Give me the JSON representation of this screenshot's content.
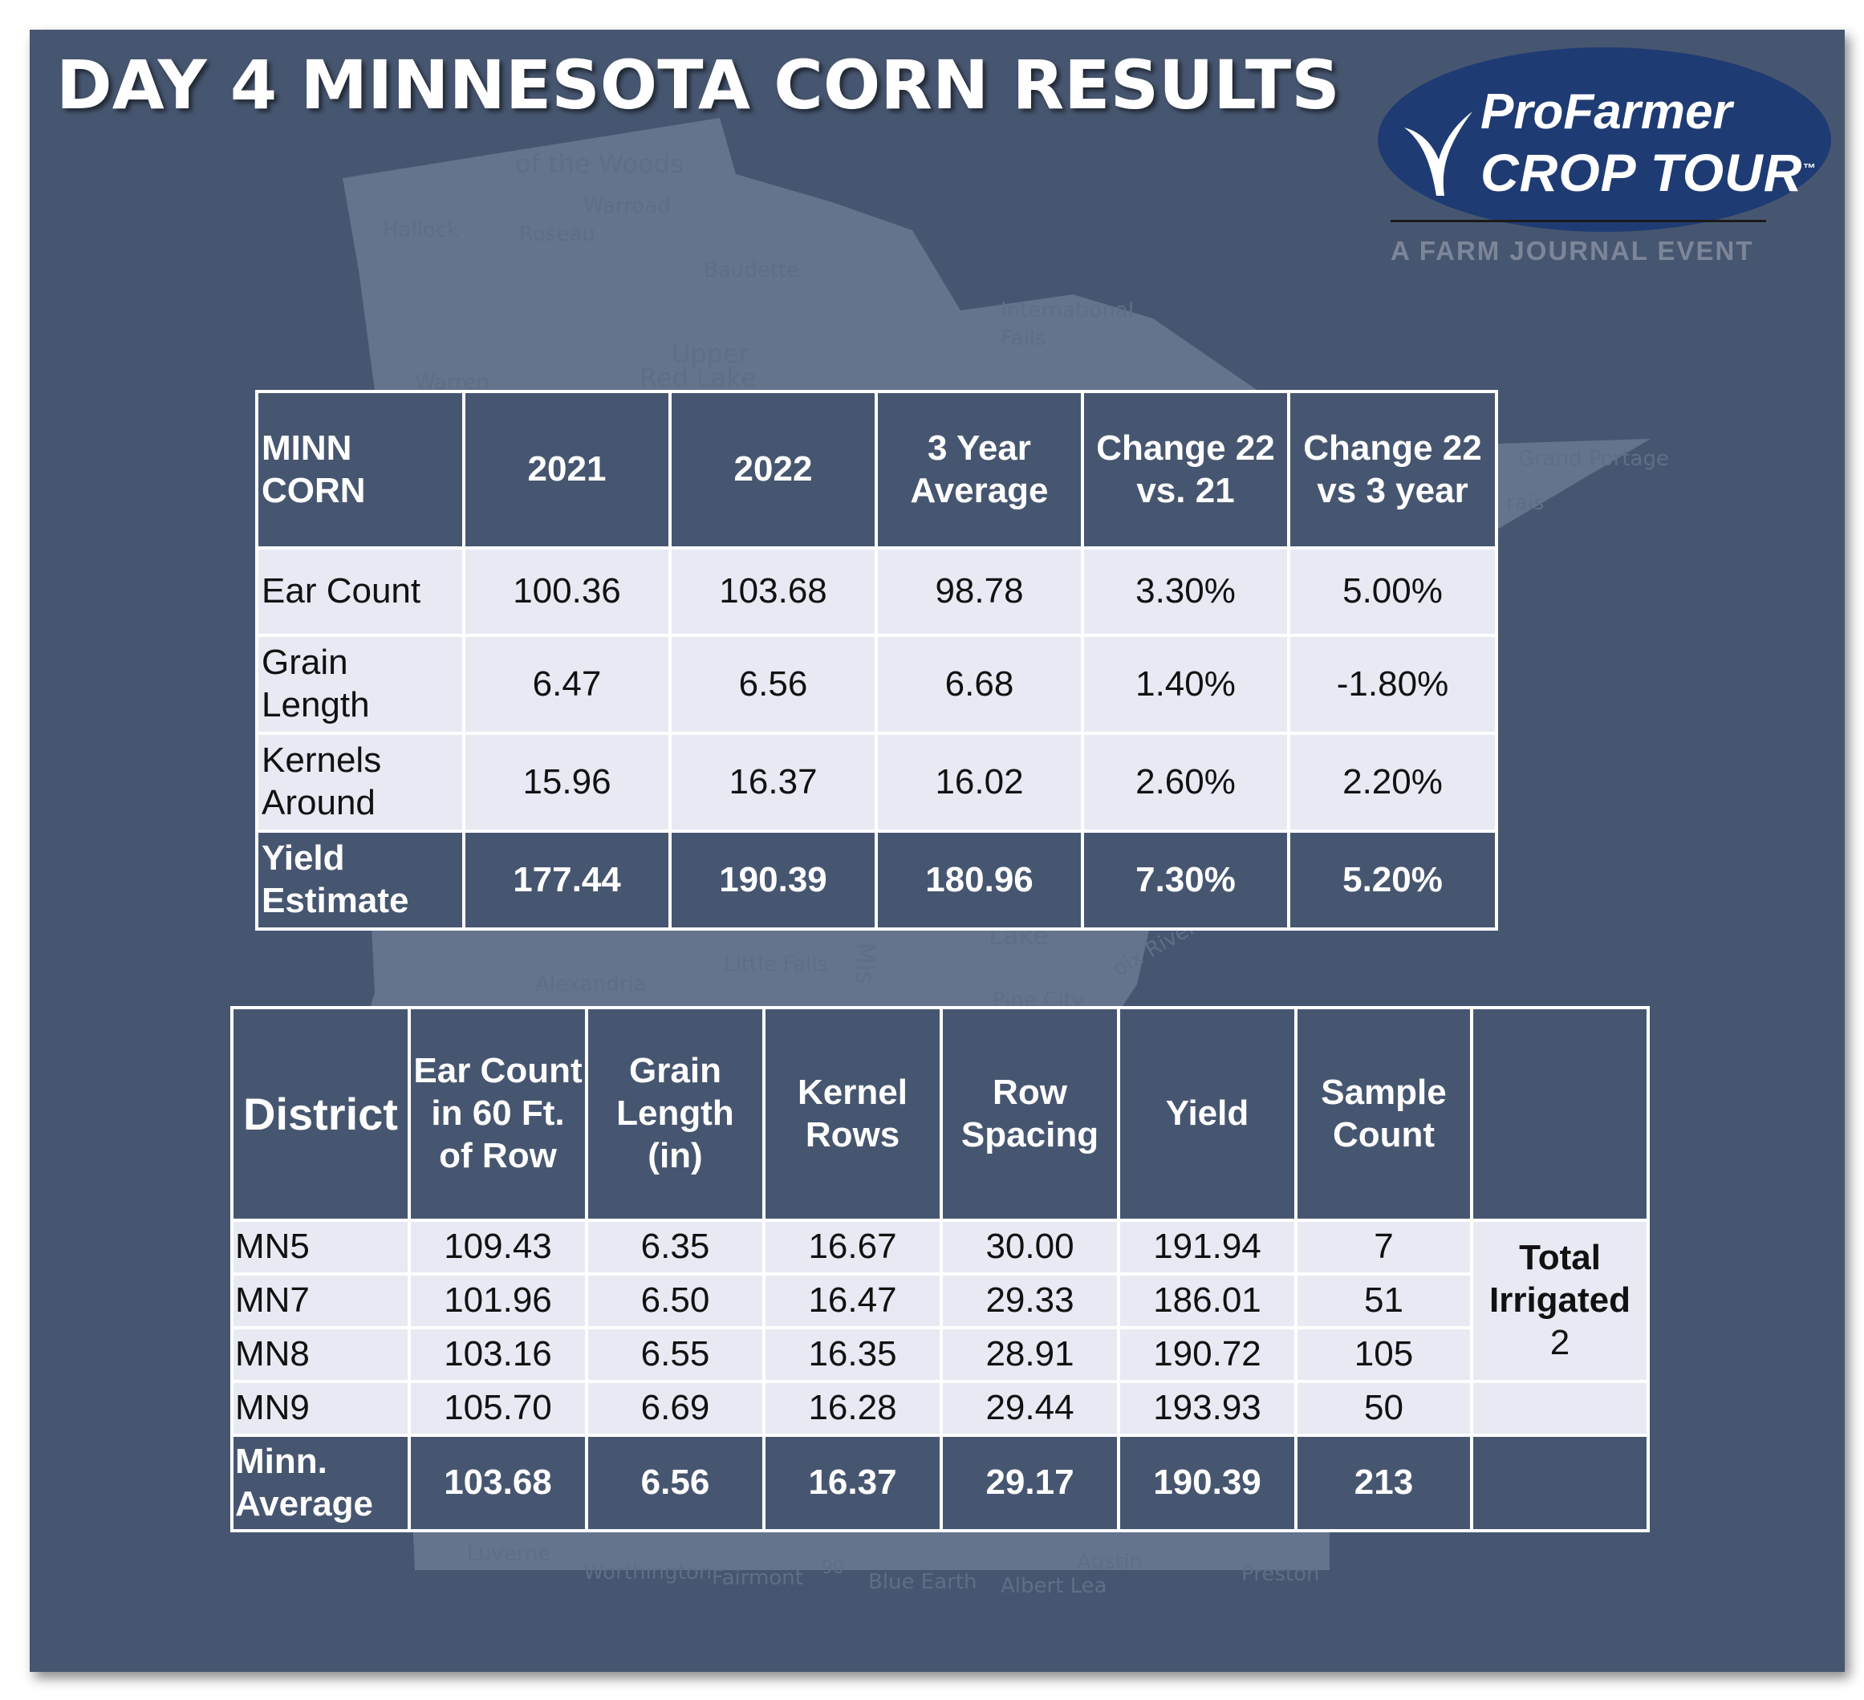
{
  "title": "DAY 4 MINNESOTA CORN RESULTS",
  "logo": {
    "line1": "ProFarmer",
    "line2": "CROP TOUR",
    "trademark": "™",
    "tagline": "A FARM JOURNAL EVENT"
  },
  "map_labels": {
    "woods": "of the Woods",
    "warroad": "Warroad",
    "hallock": "Hallock",
    "roseau": "Roseau",
    "baudette": "Baudette",
    "international_falls_1": "International",
    "international_falls_2": "Falls",
    "upper": "Upper",
    "red_lake": "Red Lake",
    "warren": "Warren",
    "grand_portage": "Grand Portage",
    "marais": "rais",
    "lake": "Lake",
    "croix_river": "oix River",
    "little_falls": "Little Falls",
    "mis": "Mis",
    "alexandria": "Alexandria",
    "pine_city": "Pine City",
    "luverne": "Luverne",
    "worthington": "Worthington",
    "fairmont": "Fairmont",
    "i90": "90",
    "blue_earth": "Blue Earth",
    "austin": "Austin",
    "albert_lea": "Albert Lea",
    "preston": "Preston"
  },
  "summary_table": {
    "header": {
      "label_1": "MINN",
      "label_2": "CORN",
      "col_2021": "2021",
      "col_2022": "2022",
      "col_avg_1": "3 Year",
      "col_avg_2": "Average",
      "col_chg21_1": "Change 22",
      "col_chg21_2": "vs. 21",
      "col_chg3_1": "Change 22",
      "col_chg3_2": "vs 3 year"
    },
    "rows": [
      {
        "label_1": "Ear Count",
        "label_2": "",
        "v2021": "100.36",
        "v2022": "103.68",
        "avg": "98.78",
        "chg21": "3.30%",
        "chg3": "5.00%"
      },
      {
        "label_1": "Grain",
        "label_2": "Length",
        "v2021": "6.47",
        "v2022": "6.56",
        "avg": "6.68",
        "chg21": "1.40%",
        "chg3": "-1.80%"
      },
      {
        "label_1": "Kernels",
        "label_2": "Around",
        "v2021": "15.96",
        "v2022": "16.37",
        "avg": "16.02",
        "chg21": "2.60%",
        "chg3": "2.20%"
      },
      {
        "label_1": "Yield",
        "label_2": "Estimate",
        "v2021": "177.44",
        "v2022": "190.39",
        "avg": "180.96",
        "chg21": "7.30%",
        "chg3": "5.20%"
      }
    ]
  },
  "district_table": {
    "header": {
      "district": "District",
      "ear_1": "Ear Count",
      "ear_2": "in 60 Ft.",
      "ear_3": "of Row",
      "grain_1": "Grain",
      "grain_2": "Length",
      "grain_3": "(in)",
      "kernel_1": "Kernel",
      "kernel_2": "Rows",
      "row_1": "Row",
      "row_2": "Spacing",
      "yield": "Yield",
      "sample_1": "Sample",
      "sample_2": "Count"
    },
    "rows": [
      {
        "district": "MN5",
        "ear": "109.43",
        "grain": "6.35",
        "kernel": "16.67",
        "spacing": "30.00",
        "yield": "191.94",
        "sample": "7"
      },
      {
        "district": "MN7",
        "ear": "101.96",
        "grain": "6.50",
        "kernel": "16.47",
        "spacing": "29.33",
        "yield": "186.01",
        "sample": "51"
      },
      {
        "district": "MN8",
        "ear": "103.16",
        "grain": "6.55",
        "kernel": "16.35",
        "spacing": "28.91",
        "yield": "190.72",
        "sample": "105"
      },
      {
        "district": "MN9",
        "ear": "105.70",
        "grain": "6.69",
        "kernel": "16.28",
        "spacing": "29.44",
        "yield": "193.93",
        "sample": "50"
      }
    ],
    "footer": {
      "label_1": "Minn.",
      "label_2": "Average",
      "ear": "103.68",
      "grain": "6.56",
      "kernel": "16.37",
      "spacing": "29.17",
      "yield": "190.39",
      "sample": "213"
    },
    "irrigated": {
      "line_1": "Total",
      "line_2": "Irrigated",
      "count": "2"
    }
  },
  "colors": {
    "background": "#475670",
    "header_cell": "#475670",
    "data_cell": "#e7e9f3",
    "map": "#8f9cb4",
    "logo": "#1f3b73"
  }
}
